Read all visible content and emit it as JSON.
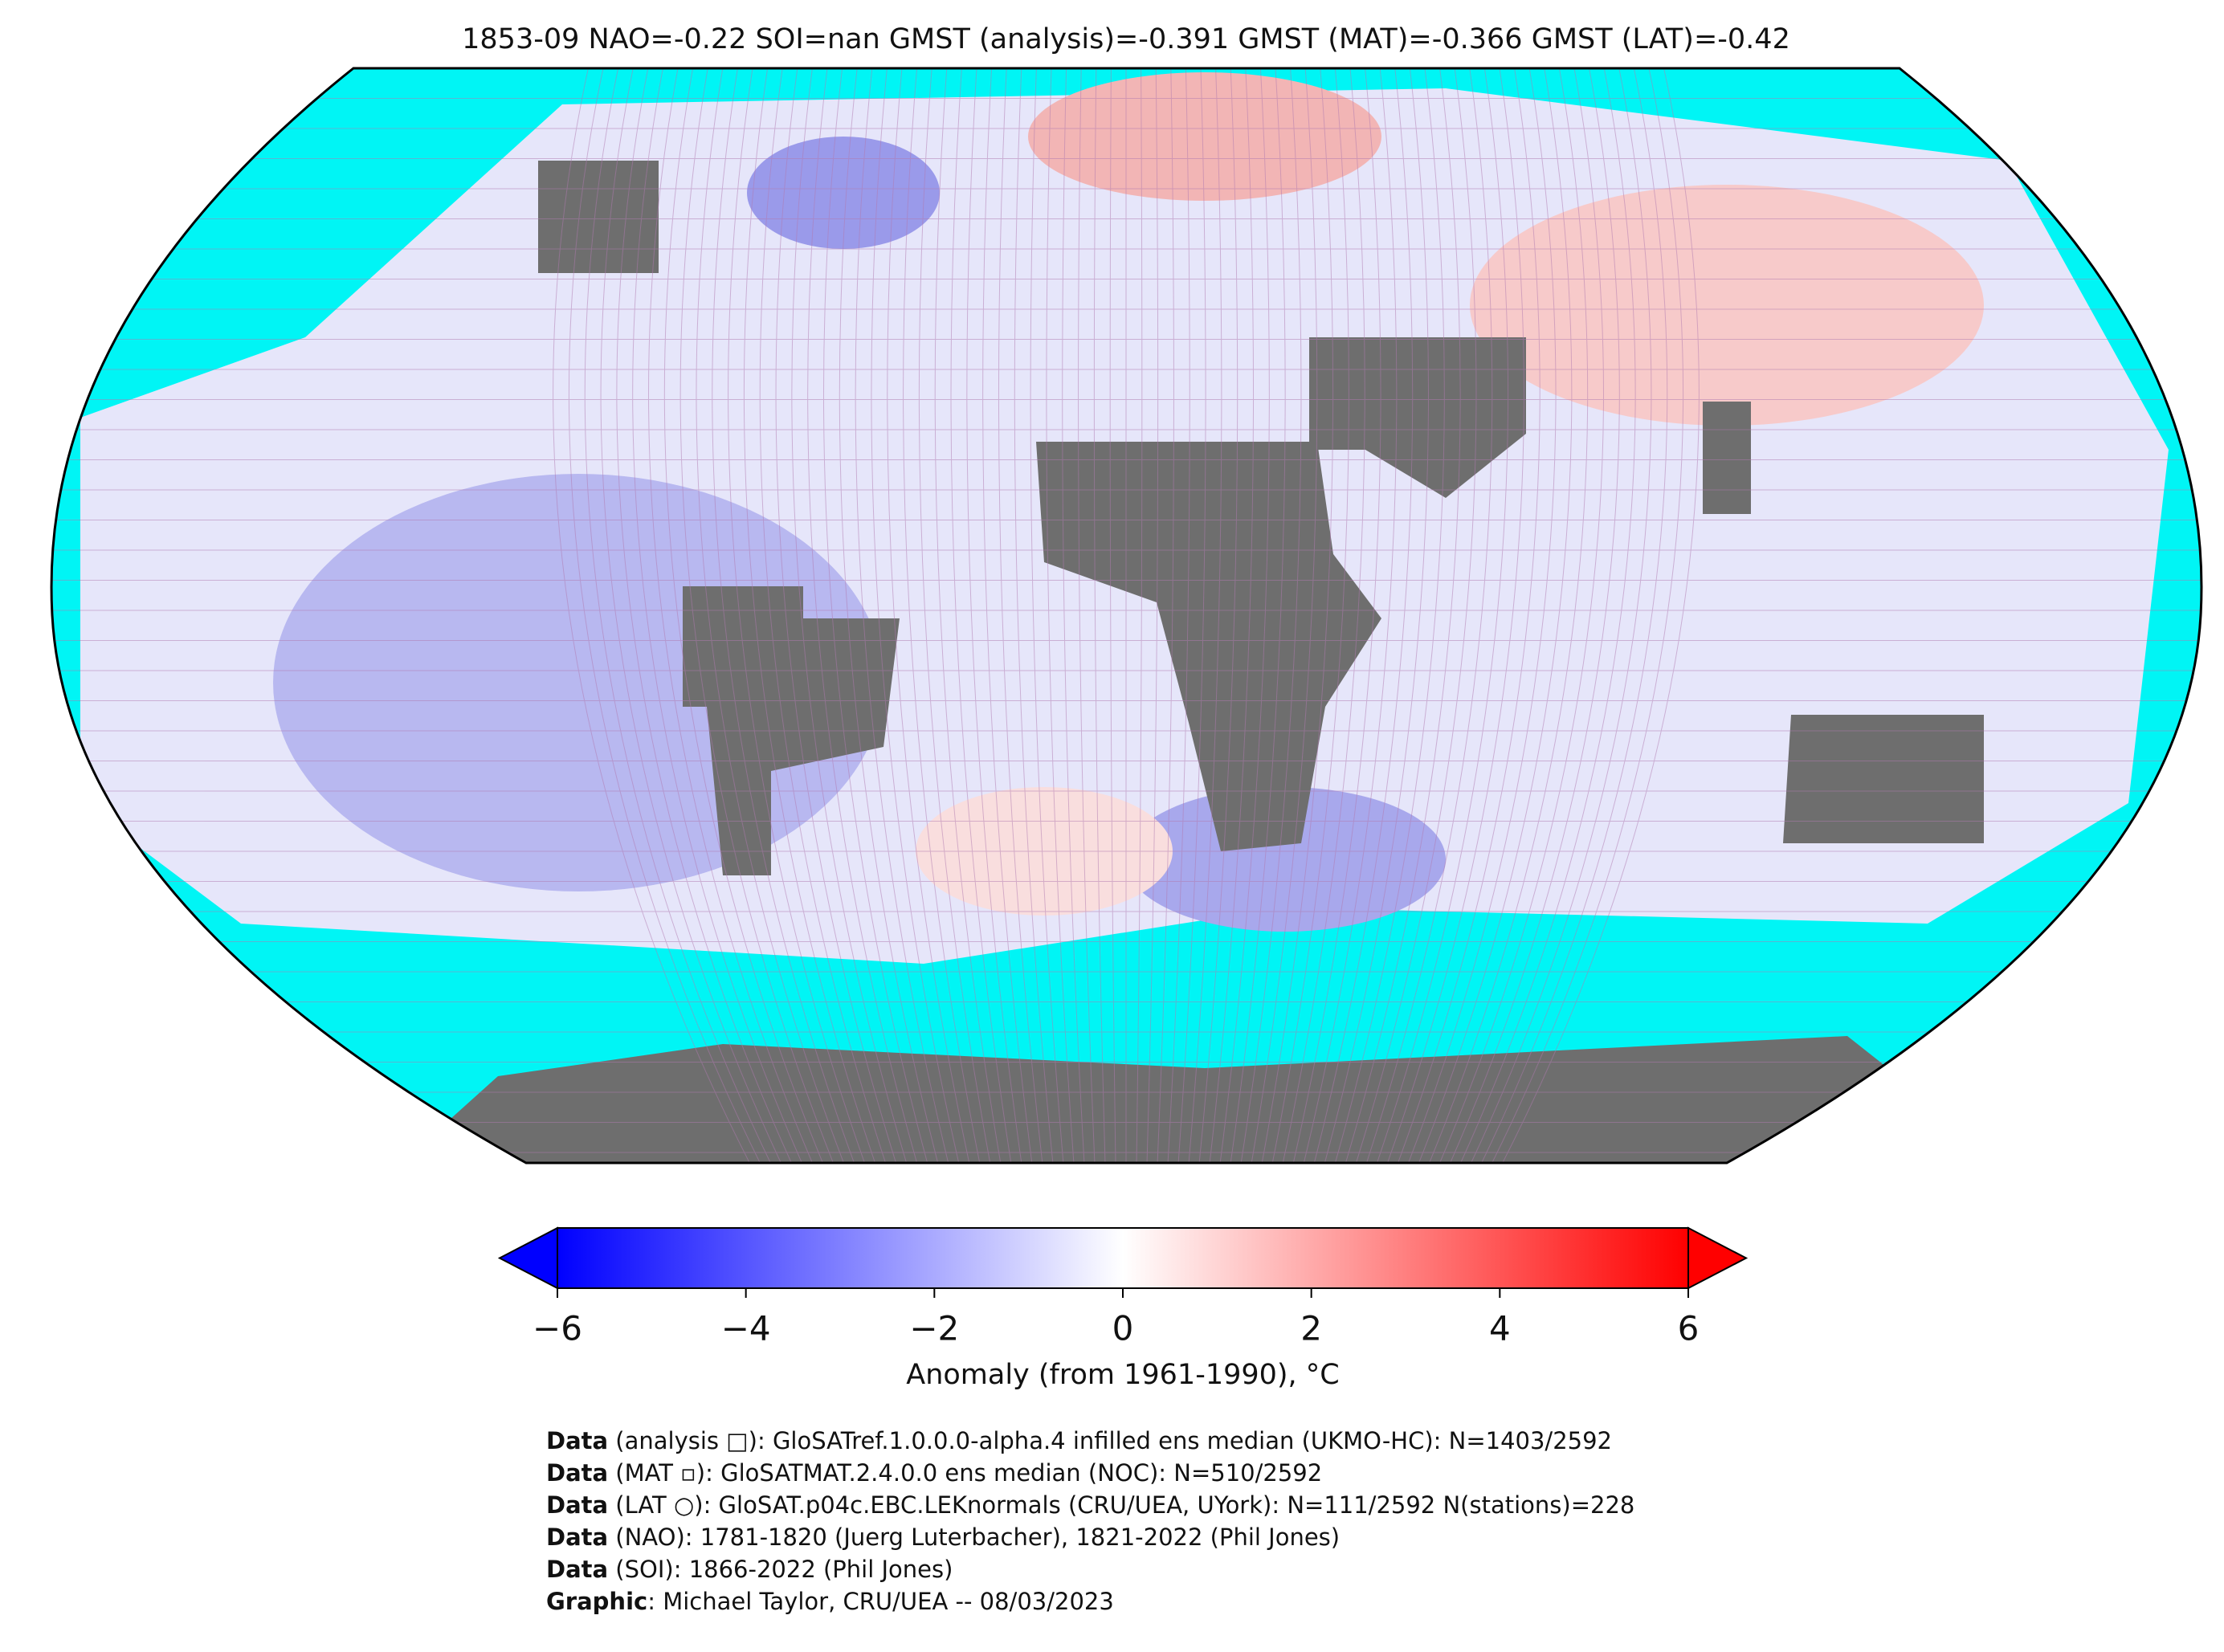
{
  "title": "1853-09 NAO=-0.22 SOI=nan GMST (analysis)=-0.391 GMST (MAT)=-0.366 GMST (LAT)=-0.42",
  "colorbar": {
    "label": "Anomaly (from 1961-1990), °C",
    "range": [
      -6,
      6
    ],
    "colors": [
      "#0000ff",
      "#ffffff",
      "#ff0000"
    ],
    "ticks": [
      {
        "value": -6,
        "label": "−6"
      },
      {
        "value": -4,
        "label": "−4"
      },
      {
        "value": -2,
        "label": "−2"
      },
      0,
      2,
      4,
      6
    ]
  },
  "notes": [
    {
      "bold": "Data",
      "text": " (analysis □): GloSATref.1.0.0.0-alpha.4 infilled ens median (UKMO-HC): N=1403/2592"
    },
    {
      "bold": "Data",
      "text": " (MAT ▫): GloSATMAT.2.4.0.0 ens median (NOC): N=510/2592"
    },
    {
      "bold": "Data",
      "text": " (LAT ○): GloSAT.p04c.EBC.LEKnormals (CRU/UEA, UYork): N=111/2592 N(stations)=228"
    },
    {
      "bold": "Data",
      "text": " (NAO): 1781-1820 (Juerg Luterbacher), 1821-2022 (Phil Jones)"
    },
    {
      "bold": "Data",
      "text": " (SOI): 1866-2022 (Phil Jones)"
    },
    {
      "bold": "Graphic",
      "text": ": Michael Taylor, CRU/UEA -- 08/03/2023"
    }
  ]
}
